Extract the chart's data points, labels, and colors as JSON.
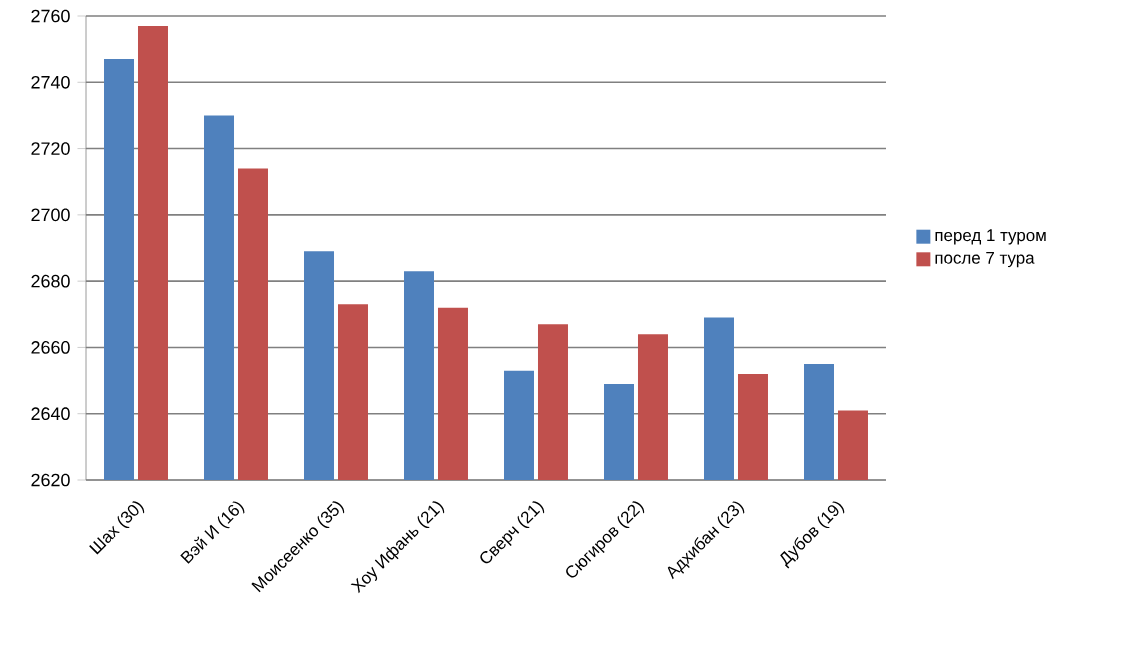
{
  "chart_data": {
    "type": "bar",
    "categories": [
      "Шах (30)",
      "Вэй И (16)",
      "Моисеенко (35)",
      "Хоу Ифань  (21)",
      "Сверч (21)",
      "Сюгиров (22)",
      "Адхибан (23)",
      "Дубов (19)"
    ],
    "series": [
      {
        "name": "перед 1 туром",
        "color": "#4f81bd",
        "values": [
          2747,
          2730,
          2689,
          2683,
          2653,
          2649,
          2669,
          2655
        ]
      },
      {
        "name": "после 7 тура",
        "color": "#c0504d",
        "values": [
          2757,
          2714,
          2673,
          2672,
          2667,
          2664,
          2652,
          2641
        ]
      }
    ],
    "ylim": [
      2620,
      2760
    ],
    "yticks": [
      2620,
      2640,
      2660,
      2680,
      2700,
      2720,
      2740,
      2760
    ],
    "grid": "y",
    "legend": "right"
  }
}
